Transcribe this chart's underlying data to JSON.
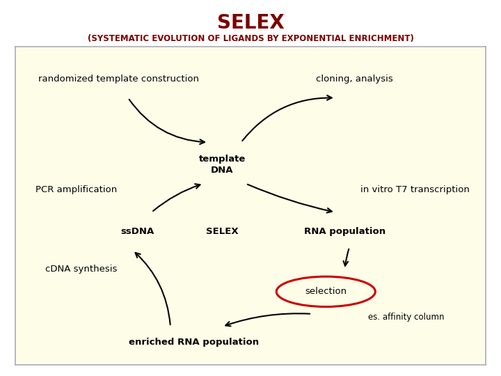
{
  "title": "SELEX",
  "subtitle": "(SYSTEMATIC EVOLUTION OF LIGANDS BY EXPONENTIAL ENRICHMENT)",
  "title_color": "#7B0000",
  "subtitle_color": "#7B0000",
  "bg_color": "#FFFFFF",
  "diagram_bg": "#FEFEE8",
  "diagram_border": "#AAAABB",
  "labels": {
    "randomized_template": "randomized template construction",
    "cloning": "cloning, analysis",
    "template_dna": "template\nDNA",
    "pcr": "PCR amplification",
    "t7": "in vitro T7 transcription",
    "ssdna": "ssDNA",
    "selex": "SELEX",
    "rna_population": "RNA population",
    "cdna": "cDNA synthesis",
    "selection": "selection",
    "affinity": "es. affinity column",
    "enriched": "enriched RNA population"
  },
  "title_fontsize": 20,
  "subtitle_fontsize": 8.5,
  "label_fontsize": 9.5,
  "selection_circle_color": "#CC0000",
  "arrow_lw": 1.5
}
